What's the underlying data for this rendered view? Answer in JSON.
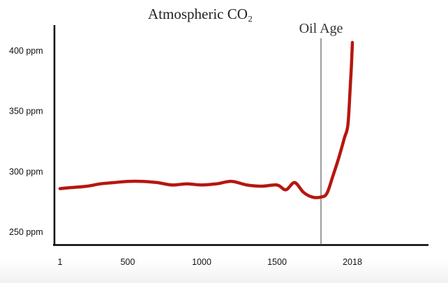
{
  "chart_data": {
    "type": "line",
    "title": "Atmospheric CO₂",
    "xlabel": "",
    "ylabel": "",
    "x_ticks": [
      "1",
      "500",
      "1000",
      "1500",
      "2018"
    ],
    "y_ticks": [
      "250 ppm",
      "300 ppm",
      "350 ppm",
      "400 ppm"
    ],
    "ylim": [
      240,
      420
    ],
    "annotation": {
      "label": "Oil Age",
      "x": 1750
    },
    "series": [
      {
        "name": "CO2",
        "color": "#b5170f",
        "x": [
          1,
          100,
          200,
          300,
          400,
          500,
          600,
          700,
          800,
          900,
          1000,
          1100,
          1200,
          1300,
          1400,
          1500,
          1550,
          1600,
          1650,
          1700,
          1750,
          1800,
          1850,
          1900,
          1950,
          1980,
          2000,
          2010,
          2018
        ],
        "y": [
          286,
          287,
          288,
          290,
          291,
          292,
          292,
          291,
          289,
          290,
          289,
          290,
          292,
          289,
          288,
          289,
          285,
          291,
          283,
          279,
          279,
          282,
          296,
          311,
          328,
          339,
          371,
          389,
          407
        ]
      }
    ]
  }
}
